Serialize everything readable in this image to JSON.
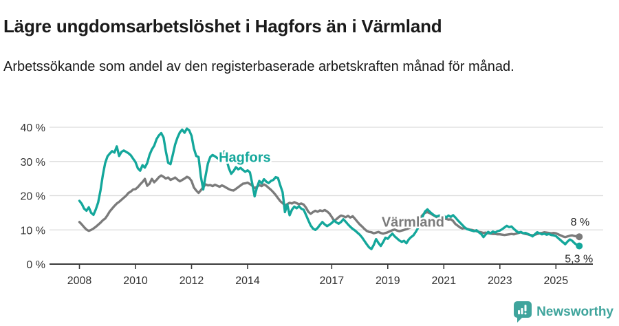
{
  "header": {
    "title": "Lägre ungdomsarbetslöshet i Hagfors än i Värmland",
    "subtitle": "Arbetssökande som andel av den registerbaserade arbetskraften månad för månad."
  },
  "footer": {
    "brand": "Newsworthy",
    "logo_icon": "bar-chart-speech-bubble-icon"
  },
  "colors": {
    "hagfors_teal": "#14a79b",
    "varmland_gray": "#7b7b7b",
    "logo_teal": "#3fa49c",
    "gridline": "#dcdcdc",
    "axis": "#3a3a3a",
    "text_dark": "#1a1a1a"
  },
  "chart_data": {
    "type": "line",
    "title": "Lägre ungdomsarbetslöshet i Hagfors än i Värmland",
    "xlabel": "",
    "ylabel": "",
    "x_start": "2008-01",
    "x_end": "2025-11",
    "freq": "monthly",
    "ylim": [
      0,
      40
    ],
    "grid": "horizontal",
    "legend_position": "inline-labels",
    "y_ticks": [
      {
        "v": 0,
        "label": "0 %"
      },
      {
        "v": 10,
        "label": "10 %"
      },
      {
        "v": 20,
        "label": "20 %"
      },
      {
        "v": 30,
        "label": "30 %"
      },
      {
        "v": 40,
        "label": "40 %"
      }
    ],
    "x_ticks": [
      {
        "year": 2008,
        "label": "2008"
      },
      {
        "year": 2010,
        "label": "2010"
      },
      {
        "year": 2012,
        "label": "2012"
      },
      {
        "year": 2014,
        "label": "2014"
      },
      {
        "year": 2017,
        "label": "2017"
      },
      {
        "year": 2019,
        "label": "2019"
      },
      {
        "year": 2021,
        "label": "2021"
      },
      {
        "year": 2023,
        "label": "2023"
      },
      {
        "year": 2025,
        "label": "2025"
      }
    ],
    "annotations": [
      {
        "id": "hagfors-label",
        "text": "Hagfors",
        "x": 2013.9,
        "y": 29.8,
        "color": "#14a79b"
      },
      {
        "id": "varmland-label",
        "text": "Värmland",
        "x": 2019.9,
        "y": 11.0,
        "color": "#7b7b7b"
      }
    ],
    "series": [
      {
        "name": "Värmland",
        "color": "#7b7b7b",
        "end_label": "8 %",
        "values": [
          12.3,
          11.6,
          10.8,
          10.1,
          9.7,
          10.0,
          10.4,
          10.9,
          11.5,
          12.1,
          12.8,
          13.3,
          14.3,
          15.4,
          16.2,
          17.0,
          17.7,
          18.2,
          18.8,
          19.4,
          20.0,
          20.8,
          21.2,
          21.8,
          21.9,
          22.5,
          23.3,
          24.0,
          24.9,
          22.9,
          23.5,
          24.9,
          23.9,
          24.6,
          25.4,
          25.9,
          25.5,
          25.0,
          25.3,
          24.6,
          24.9,
          25.3,
          24.7,
          24.2,
          24.6,
          25.0,
          25.5,
          25.2,
          24.3,
          22.4,
          21.5,
          20.8,
          21.6,
          22.5,
          23.3,
          23.0,
          23.1,
          22.8,
          23.2,
          22.9,
          22.6,
          23.0,
          22.7,
          22.3,
          21.9,
          21.6,
          21.5,
          22.0,
          22.5,
          23.0,
          23.5,
          23.6,
          23.8,
          23.4,
          22.9,
          22.2,
          22.6,
          23.1,
          22.8,
          23.3,
          22.9,
          22.3,
          21.7,
          21.0,
          20.2,
          19.3,
          18.4,
          17.8,
          17.2,
          17.5,
          17.9,
          17.7,
          18.1,
          17.8,
          17.5,
          17.7,
          17.4,
          16.5,
          15.3,
          14.7,
          15.2,
          15.6,
          15.3,
          15.7,
          15.5,
          15.8,
          15.4,
          14.8,
          13.8,
          12.7,
          13.1,
          13.7,
          14.2,
          14.0,
          13.7,
          14.1,
          13.6,
          14.0,
          13.2,
          12.4,
          11.6,
          11.0,
          10.3,
          9.7,
          9.4,
          9.3,
          9.0,
          9.2,
          9.4,
          9.1,
          8.9,
          9.1,
          9.3,
          9.6,
          9.9,
          10.1,
          9.8,
          9.6,
          9.8,
          10.0,
          10.2,
          10.5,
          10.8,
          11.3,
          12.0,
          12.8,
          13.6,
          14.4,
          15.0,
          15.2,
          14.9,
          14.5,
          14.1,
          13.7,
          13.5,
          13.4,
          13.3,
          13.2,
          13.0,
          13.1,
          12.6,
          11.7,
          11.2,
          10.7,
          10.4,
          10.6,
          10.3,
          10.1,
          10.0,
          9.8,
          9.6,
          9.4,
          9.3,
          9.1,
          9.2,
          9.0,
          8.9,
          8.8,
          8.8,
          8.7,
          8.7,
          8.6,
          8.5,
          8.6,
          8.7,
          8.8,
          8.7,
          8.9,
          9.1,
          9.3,
          9.0,
          8.8,
          8.7,
          8.5,
          8.4,
          8.6,
          8.8,
          9.0,
          9.1,
          9.3,
          9.2,
          9.1,
          9.0,
          9.1,
          9.0,
          8.7,
          8.4,
          8.1,
          7.9,
          8.1,
          8.3,
          8.4,
          8.2,
          8.1,
          8.0
        ]
      },
      {
        "name": "Hagfors",
        "color": "#14a79b",
        "end_label": "5,3 %",
        "values": [
          18.5,
          17.6,
          16.2,
          15.6,
          16.6,
          15.0,
          14.4,
          16.0,
          18.0,
          21.5,
          26.0,
          29.5,
          31.5,
          32.3,
          33.0,
          32.6,
          34.4,
          31.6,
          32.8,
          33.2,
          32.8,
          32.4,
          31.8,
          30.8,
          29.8,
          28.0,
          27.3,
          28.9,
          28.2,
          29.5,
          31.9,
          33.5,
          34.6,
          36.5,
          37.6,
          38.3,
          37.0,
          33.0,
          29.6,
          29.2,
          32.0,
          35.0,
          37.0,
          38.5,
          39.3,
          38.4,
          39.6,
          39.1,
          37.5,
          33.8,
          31.6,
          31.3,
          25.5,
          21.8,
          25.8,
          29.4,
          31.3,
          31.9,
          31.5,
          31.0,
          30.6,
          31.0,
          32.9,
          30.5,
          28.0,
          26.4,
          27.2,
          28.3,
          27.7,
          28.1,
          27.5,
          27.0,
          27.4,
          26.8,
          23.5,
          19.8,
          22.4,
          24.3,
          23.6,
          24.8,
          24.1,
          23.7,
          24.3,
          24.6,
          25.4,
          25.2,
          23.0,
          21.0,
          15.2,
          17.4,
          14.3,
          15.9,
          16.8,
          16.3,
          16.9,
          16.2,
          15.9,
          14.4,
          12.8,
          11.3,
          10.4,
          10.0,
          10.6,
          11.5,
          12.3,
          11.6,
          11.1,
          11.5,
          12.0,
          12.7,
          12.2,
          11.8,
          12.3,
          13.1,
          12.4,
          11.6,
          10.9,
          10.3,
          9.8,
          9.2,
          8.6,
          7.8,
          6.8,
          5.8,
          4.9,
          4.4,
          5.6,
          7.3,
          6.2,
          5.3,
          6.4,
          7.7,
          7.4,
          8.2,
          8.9,
          8.1,
          7.5,
          6.9,
          6.5,
          6.8,
          6.1,
          7.2,
          7.9,
          8.4,
          9.4,
          10.6,
          12.2,
          14.0,
          15.4,
          16.0,
          15.3,
          14.7,
          14.2,
          13.9,
          14.2,
          13.8,
          14.1,
          13.6,
          14.2,
          13.8,
          14.3,
          13.6,
          12.8,
          12.1,
          11.4,
          10.7,
          10.2,
          10.0,
          9.8,
          9.6,
          9.9,
          9.3,
          8.8,
          7.9,
          8.7,
          9.4,
          9.0,
          9.5,
          9.2,
          9.6,
          9.8,
          10.2,
          10.7,
          11.2,
          10.8,
          11.0,
          10.3,
          9.7,
          9.2,
          9.4,
          9.0,
          9.1,
          8.8,
          8.5,
          8.1,
          8.7,
          9.3,
          9.0,
          8.7,
          8.9,
          8.6,
          8.8,
          8.5,
          8.4,
          8.2,
          7.6,
          7.0,
          6.4,
          5.8,
          6.6,
          7.2,
          6.8,
          6.1,
          5.6,
          5.3
        ]
      }
    ]
  }
}
